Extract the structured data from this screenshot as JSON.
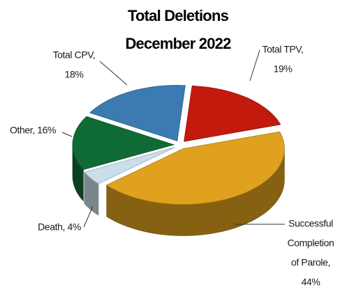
{
  "chart_data": {
    "type": "pie",
    "title": [
      "Total Deletions",
      "December 2022"
    ],
    "values": [
      19,
      44,
      4,
      16,
      18
    ],
    "value_labels": [
      [
        "Total TPV,",
        "19%"
      ],
      [
        "Successful",
        "Completion",
        "of Parole,",
        "44%"
      ],
      [
        "Death, 4%"
      ],
      [
        "Other, 16%"
      ],
      [
        "Total CPV,",
        "18%"
      ]
    ],
    "colors": [
      "#c21a0c",
      "#e0a21e",
      "#c9dfea",
      "#0f6b36",
      "#3b7bb2"
    ],
    "three_d": true
  }
}
